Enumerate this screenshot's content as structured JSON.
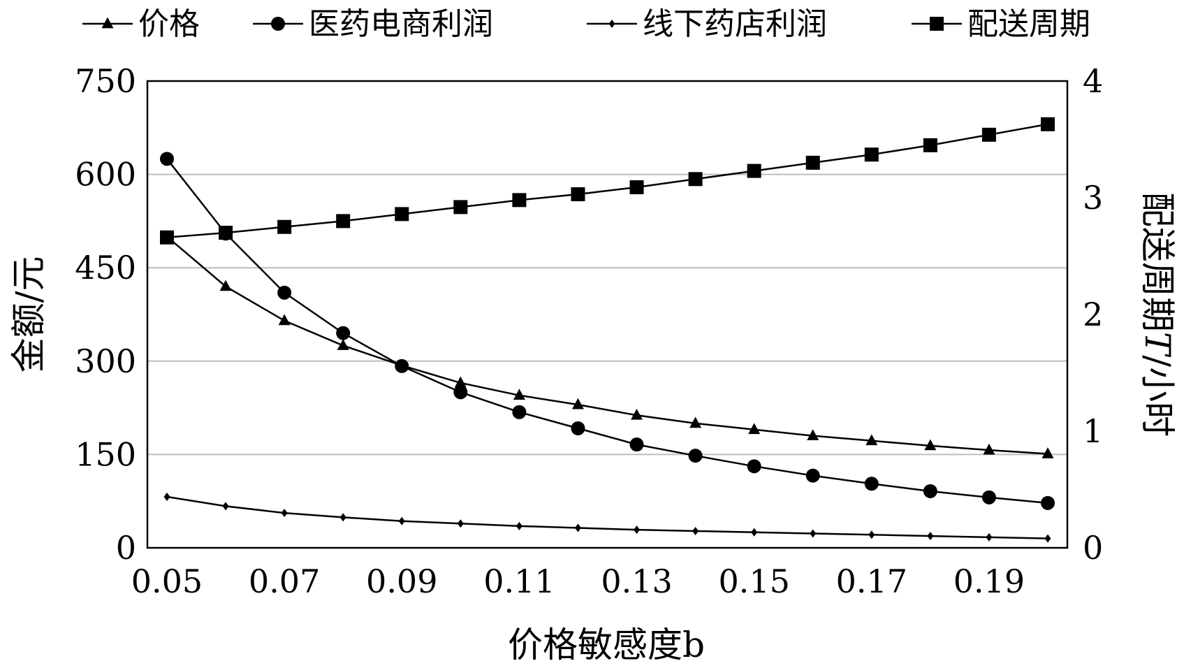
{
  "chart_data": {
    "type": "line",
    "x": [
      0.05,
      0.06,
      0.07,
      0.08,
      0.09,
      0.1,
      0.11,
      0.12,
      0.13,
      0.14,
      0.15,
      0.16,
      0.17,
      0.18,
      0.19,
      0.2
    ],
    "x_tick_labels": [
      "0.05",
      "0.07",
      "0.09",
      "0.11",
      "0.13",
      "0.15",
      "0.17",
      "0.19"
    ],
    "xlabel": "价格敏感度b",
    "ylabel": "金额/元",
    "y2label_prefix": "配送周期",
    "y2label_var": "T",
    "y2label_suffix": "/小时",
    "ylim": [
      0,
      750
    ],
    "y_ticks": [
      "0",
      "150",
      "300",
      "450",
      "600",
      "750"
    ],
    "y2lim": [
      0,
      4
    ],
    "y2_ticks": [
      "0",
      "1",
      "2",
      "3",
      "4"
    ],
    "grid": "horizontal",
    "legend_position": "top",
    "series": [
      {
        "name": "价格",
        "marker": "triangle",
        "axis": "left",
        "values": [
          500,
          420,
          365,
          325,
          293,
          265,
          245,
          230,
          213,
          200,
          190,
          180,
          172,
          164,
          157,
          151
        ]
      },
      {
        "name": "医药电商利润",
        "marker": "circle",
        "axis": "left",
        "values": [
          625,
          505,
          410,
          345,
          292,
          250,
          218,
          192,
          166,
          148,
          131,
          116,
          103,
          91,
          81,
          72
        ]
      },
      {
        "name": "线下药店利润",
        "marker": "diamond",
        "axis": "left",
        "values": [
          82,
          67,
          56,
          49,
          43,
          39,
          35,
          32,
          29,
          27,
          25,
          23,
          21,
          19,
          17,
          15
        ]
      },
      {
        "name": "配送周期",
        "marker": "square",
        "axis": "right",
        "values": [
          2.66,
          2.7,
          2.75,
          2.8,
          2.86,
          2.92,
          2.98,
          3.03,
          3.09,
          3.16,
          3.23,
          3.3,
          3.37,
          3.45,
          3.54,
          3.63
        ]
      }
    ]
  }
}
